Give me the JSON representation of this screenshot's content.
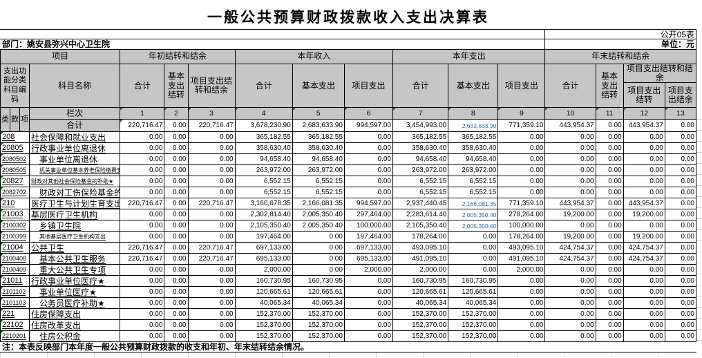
{
  "title": "一般公共预算财政拨款收入支出决算表",
  "meta": {
    "sheet_label": "公开05表",
    "department": "部门：姚安县弥兴中心卫生院",
    "unit_label": "单位：元"
  },
  "header": {
    "project": "项目",
    "group_begin": "年初结转和结余",
    "group_income": "本年收入",
    "group_expense": "本年支出",
    "group_end": "年末结转和结余",
    "code_header": "支出功能分类科目编码",
    "name_header": "科目名称",
    "col_total": "合计",
    "col_basic_carryover": "基本支出结转",
    "col_project_carryover_balance": "项目支出结转和结余",
    "col_basic": "基本支出",
    "col_project": "项目支出",
    "col_project_carryover": "项目支出结转",
    "col_project_balance": "项目支出结余",
    "code_parts": [
      "类",
      "款",
      "项"
    ],
    "lanci_label": "栏次",
    "total_label": "合计",
    "column_numbers": [
      "1",
      "2",
      "3",
      "4",
      "5",
      "6",
      "7",
      "8",
      "9",
      "10",
      "11",
      "12",
      "13"
    ]
  },
  "total_row": {
    "values": [
      "220,716.47",
      "0.00",
      "220,716.47",
      "3,678,230.90",
      "2,683,633.90",
      "994,597.00",
      "3,454,993.00",
      "2,683,633.90",
      "771,359.10",
      "443,954.37",
      "0.00",
      "443,954.37",
      "0.00"
    ],
    "shrink": [
      7
    ]
  },
  "rows": [
    {
      "code": "208",
      "name": "社会保障和就业支出",
      "indent": false,
      "small": false,
      "values": [
        "0.00",
        "0.00",
        "0.00",
        "365,182.55",
        "365,182.55",
        "0.00",
        "365,182.55",
        "365,182.55",
        "0.00",
        "0.00",
        "0.00",
        "0.00",
        "0.00"
      ],
      "shrink": []
    },
    {
      "code": "20805",
      "name": "行政事业单位离退休",
      "indent": false,
      "small": false,
      "values": [
        "0.00",
        "0.00",
        "0.00",
        "358,630.40",
        "358,630.40",
        "0.00",
        "358,630.40",
        "358,630.40",
        "0.00",
        "0.00",
        "0.00",
        "0.00",
        "0.00"
      ],
      "shrink": []
    },
    {
      "code": "2080502",
      "name": "事业单位离退休",
      "indent": true,
      "small": false,
      "values": [
        "0.00",
        "0.00",
        "0.00",
        "94,658.40",
        "94,658.40",
        "0.00",
        "94,658.40",
        "94,658.40",
        "0.00",
        "0.00",
        "0.00",
        "0.00",
        "0.00"
      ],
      "shrink": []
    },
    {
      "code": "2080505",
      "name": "机关事业单位基本养老保险缴费支出★",
      "indent": true,
      "small": true,
      "values": [
        "0.00",
        "0.00",
        "0.00",
        "263,972.00",
        "263,972.00",
        "0.00",
        "263,972.00",
        "263,972.00",
        "0.00",
        "0.00",
        "0.00",
        "0.00",
        "0.00"
      ],
      "shrink": []
    },
    {
      "code": "20827",
      "name": "财政对其他社会保险基金的补助★",
      "indent": false,
      "small": true,
      "values": [
        "0.00",
        "0.00",
        "0.00",
        "6,552.15",
        "6,552.15",
        "0.00",
        "6,552.15",
        "6,552.15",
        "0.00",
        "0.00",
        "0.00",
        "0.00",
        "0.00"
      ],
      "shrink": []
    },
    {
      "code": "2082702",
      "name": "财政对工伤保险基金的补助★",
      "indent": true,
      "small": false,
      "values": [
        "0.00",
        "0.00",
        "0.00",
        "6,552.15",
        "6,552.15",
        "0.00",
        "6,552.15",
        "6,552.15",
        "0.00",
        "0.00",
        "0.00",
        "0.00",
        "0.00"
      ],
      "shrink": []
    },
    {
      "code": "210",
      "name": "医疗卫生与计划生育支出",
      "indent": false,
      "small": false,
      "values": [
        "220,716.47",
        "0.00",
        "220,716.47",
        "3,160,678.35",
        "2,166,081.35",
        "994,597.00",
        "2,937,440.45",
        "2,166,081.35",
        "771,359.10",
        "443,954.37",
        "0.00",
        "443,954.37",
        "0.00"
      ],
      "shrink": [
        7
      ]
    },
    {
      "code": "21003",
      "name": "基层医疗卫生机构",
      "indent": false,
      "small": false,
      "values": [
        "0.00",
        "0.00",
        "0.00",
        "2,302,814.40",
        "2,005,350.40",
        "297,464.00",
        "2,283,614.40",
        "2,005,350.40",
        "278,264.00",
        "19,200.00",
        "0.00",
        "19,200.00",
        "0.00"
      ],
      "shrink": [
        7
      ]
    },
    {
      "code": "2100302",
      "name": "乡镇卫生院",
      "indent": true,
      "small": false,
      "values": [
        "0.00",
        "0.00",
        "0.00",
        "2,105,350.40",
        "2,005,350.40",
        "100,000.00",
        "2,105,350.40",
        "2,005,350.40",
        "100,000.00",
        "0.00",
        "0.00",
        "0.00",
        "0.00"
      ],
      "shrink": [
        7
      ]
    },
    {
      "code": "2100399",
      "name": "其他基层医疗卫生机构支出",
      "indent": true,
      "small": true,
      "values": [
        "0.00",
        "0.00",
        "0.00",
        "197,464.00",
        "0.00",
        "197,464.00",
        "178,264.00",
        "0.00",
        "178,264.00",
        "19,200.00",
        "0.00",
        "19,200.00",
        "0.00"
      ],
      "shrink": []
    },
    {
      "code": "21004",
      "name": "公共卫生",
      "indent": false,
      "small": false,
      "values": [
        "220,716.47",
        "0.00",
        "220,716.47",
        "697,133.00",
        "0.00",
        "697,133.00",
        "493,095.10",
        "0.00",
        "493,095.10",
        "424,754.37",
        "0.00",
        "424,754.37",
        "0.00"
      ],
      "shrink": []
    },
    {
      "code": "2100408",
      "name": "基本公共卫生服务",
      "indent": true,
      "small": false,
      "values": [
        "220,716.47",
        "0.00",
        "220,716.47",
        "695,133.00",
        "0.00",
        "695,133.00",
        "491,095.10",
        "0.00",
        "491,095.10",
        "424,754.37",
        "0.00",
        "424,754.37",
        "0.00"
      ],
      "shrink": []
    },
    {
      "code": "2100409",
      "name": "重大公共卫生专项",
      "indent": true,
      "small": false,
      "values": [
        "0.00",
        "0.00",
        "0.00",
        "2,000.00",
        "0.00",
        "2,000.00",
        "2,000.00",
        "0.00",
        "2,000.00",
        "0.00",
        "0.00",
        "0.00",
        "0.00"
      ],
      "shrink": []
    },
    {
      "code": "21011",
      "name": "行政事业单位医疗★",
      "indent": false,
      "small": false,
      "values": [
        "0.00",
        "0.00",
        "0.00",
        "160,730.95",
        "160,730.95",
        "0.00",
        "160,730.95",
        "160,730.95",
        "0.00",
        "0.00",
        "0.00",
        "0.00",
        "0.00"
      ],
      "shrink": []
    },
    {
      "code": "2101102",
      "name": "事业单位医疗★",
      "indent": true,
      "small": false,
      "values": [
        "0.00",
        "0.00",
        "0.00",
        "120,665.61",
        "120,665.61",
        "0.00",
        "120,665.61",
        "120,665.61",
        "0.00",
        "0.00",
        "0.00",
        "0.00",
        "0.00"
      ],
      "shrink": []
    },
    {
      "code": "2101103",
      "name": "公务员医疗补助★",
      "indent": true,
      "small": false,
      "values": [
        "0.00",
        "0.00",
        "0.00",
        "40,065.34",
        "40,065.34",
        "0.00",
        "40,065.34",
        "40,065.34",
        "0.00",
        "0.00",
        "0.00",
        "0.00",
        "0.00"
      ],
      "shrink": []
    },
    {
      "code": "221",
      "name": "住房保障支出",
      "indent": false,
      "small": false,
      "values": [
        "0.00",
        "0.00",
        "0.00",
        "152,370.00",
        "152,370.00",
        "0.00",
        "152,370.00",
        "152,370.00",
        "0.00",
        "0.00",
        "0.00",
        "0.00",
        "0.00"
      ],
      "shrink": []
    },
    {
      "code": "22102",
      "name": "住房改革支出",
      "indent": false,
      "small": false,
      "values": [
        "0.00",
        "0.00",
        "0.00",
        "152,370.00",
        "152,370.00",
        "0.00",
        "152,370.00",
        "152,370.00",
        "0.00",
        "0.00",
        "0.00",
        "0.00",
        "0.00"
      ],
      "shrink": []
    },
    {
      "code": "2210201",
      "name": "住房公积金",
      "indent": true,
      "small": false,
      "values": [
        "0.00",
        "0.00",
        "0.00",
        "152,370.00",
        "152,370.00",
        "0.00",
        "152,370.00",
        "152,370.00",
        "0.00",
        "0.00",
        "0.00",
        "0.00",
        "0.00"
      ],
      "shrink": []
    }
  ],
  "note": "注：本表反映部门本年度一般公共预算财政拨款的收支和年初、年末结转结余情况。",
  "colors": {
    "header_bg": "#c6c6c6",
    "grid_line": "#000000",
    "flag_triangle": "#108010",
    "shrunk_text": "#4666a8"
  }
}
